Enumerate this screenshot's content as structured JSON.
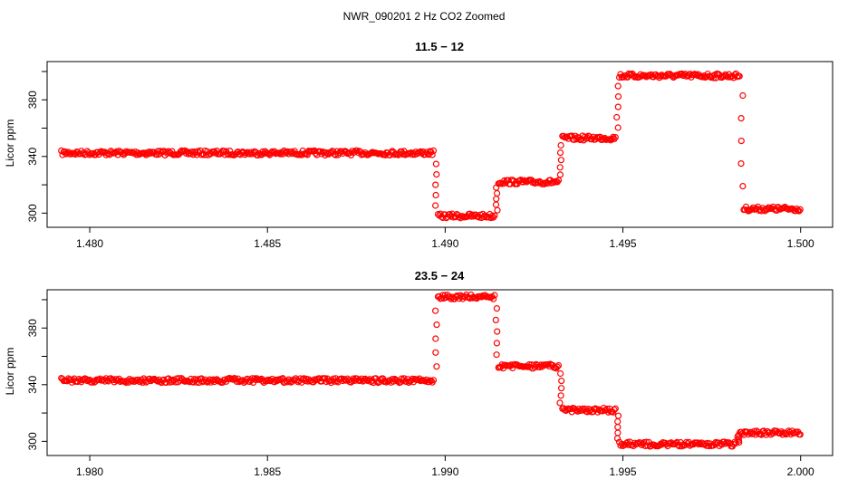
{
  "figure_title": "NWR_090201  2 Hz CO2 Zoomed",
  "colors": {
    "points": "#ff0000",
    "axes": "#000000",
    "background": "#ffffff"
  },
  "chart_data": [
    {
      "type": "scatter",
      "title": "11.5 − 12",
      "xlabel": "",
      "ylabel": "Licor ppm",
      "xlim": [
        1.4788,
        1.5009
      ],
      "ylim": [
        290,
        407
      ],
      "xticks": [
        "1.480",
        "1.485",
        "1.490",
        "1.495",
        "1.500"
      ],
      "yticks": [
        "300",
        "340",
        "380"
      ],
      "grid": false,
      "marker": "open-circle",
      "segments": [
        {
          "x": [
            1.4792,
            1.4897
          ],
          "y": 342.5
        },
        {
          "x": [
            1.4898,
            1.4914
          ],
          "y": 298
        },
        {
          "x": [
            1.4915,
            1.4932
          ],
          "y": 322
        },
        {
          "x": [
            1.4933,
            1.4948
          ],
          "y": 353
        },
        {
          "x": [
            1.4949,
            1.4983
          ],
          "y": 397
        },
        {
          "x": [
            1.4984,
            1.5
          ],
          "y": 303
        }
      ],
      "transitions": [
        {
          "x": 1.48975,
          "y": [
            342,
            298
          ]
        },
        {
          "x": 1.49145,
          "y": [
            298,
            322
          ]
        },
        {
          "x": 1.49325,
          "y": [
            322,
            353
          ]
        },
        {
          "x": 1.49485,
          "y": [
            353,
            397
          ]
        },
        {
          "x": 1.49835,
          "y": [
            399,
            303
          ]
        }
      ]
    },
    {
      "type": "scatter",
      "title": "23.5 − 24",
      "xlabel": "",
      "ylabel": "Licor ppm",
      "xlim": [
        1.9788,
        2.0009
      ],
      "ylim": [
        290,
        407
      ],
      "xticks": [
        "1.980",
        "1.985",
        "1.990",
        "1.995",
        "2.000"
      ],
      "yticks": [
        "300",
        "340",
        "380"
      ],
      "grid": false,
      "marker": "open-circle",
      "segments": [
        {
          "x": [
            1.9792,
            1.9897
          ],
          "y": 343
        },
        {
          "x": [
            1.9898,
            1.9914
          ],
          "y": 402
        },
        {
          "x": [
            1.9915,
            1.9932
          ],
          "y": 353
        },
        {
          "x": [
            1.9933,
            1.9948
          ],
          "y": 322
        },
        {
          "x": [
            1.9949,
            1.9982
          ],
          "y": 298
        },
        {
          "x": [
            1.9983,
            2.0
          ],
          "y": 306
        }
      ],
      "transitions": [
        {
          "x": 1.98975,
          "y": [
            343,
            402
          ]
        },
        {
          "x": 1.99145,
          "y": [
            402,
            353
          ]
        },
        {
          "x": 1.99325,
          "y": [
            353,
            322
          ]
        },
        {
          "x": 1.99485,
          "y": [
            322,
            298
          ]
        },
        {
          "x": 1.99825,
          "y": [
            298,
            306
          ]
        }
      ]
    }
  ]
}
